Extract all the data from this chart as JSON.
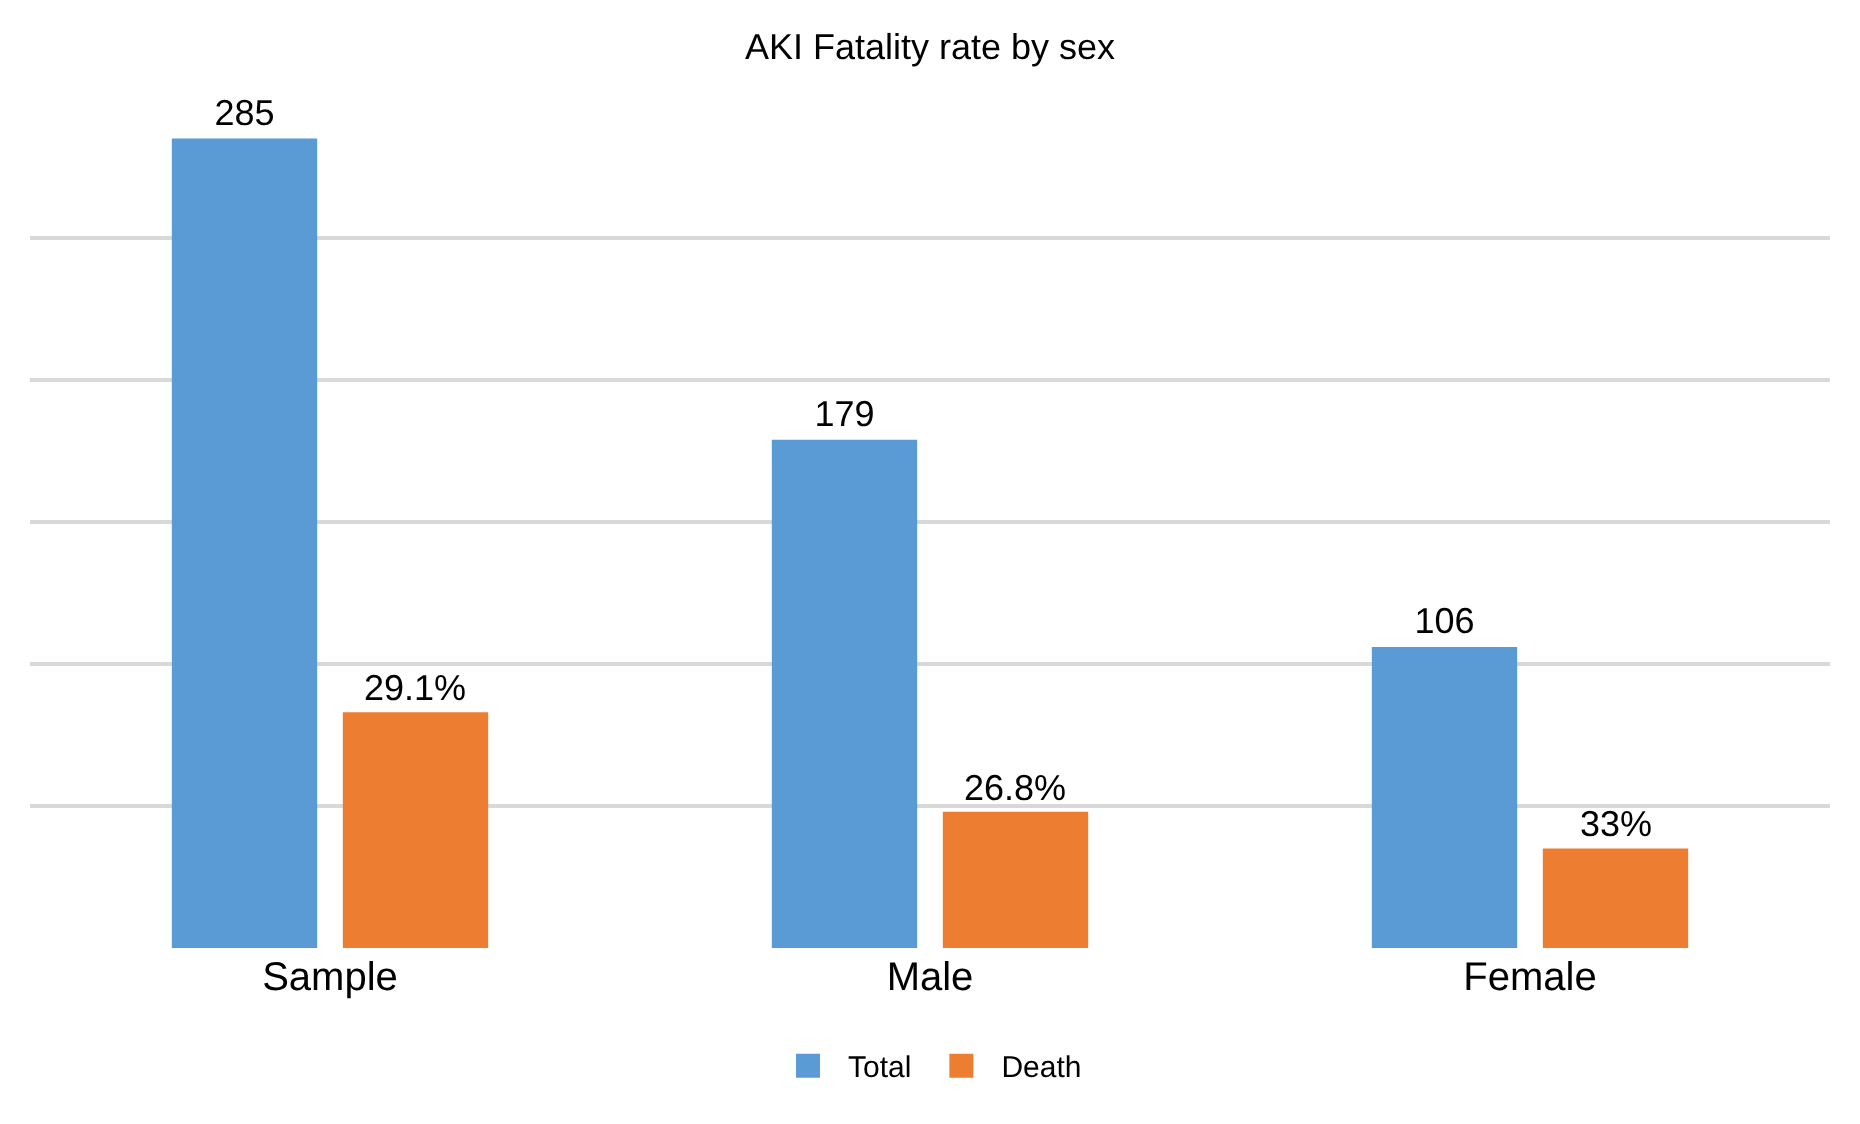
{
  "chart_data": {
    "type": "bar",
    "title": "AKI Fatality rate by sex",
    "categories": [
      "Sample",
      "Male",
      "Female"
    ],
    "series": [
      {
        "name": "Total",
        "color": "#5b9bd5",
        "values": [
          285,
          179,
          106
        ],
        "value_labels": [
          "285",
          "179",
          "106"
        ]
      },
      {
        "name": "Death",
        "color": "#ed7d31",
        "values": [
          83,
          48,
          35
        ]
      }
    ],
    "annotations": [
      "29.1%",
      "26.8%",
      "33%"
    ],
    "tick_labels": "x",
    "grid": "y",
    "legend": "bottom"
  }
}
